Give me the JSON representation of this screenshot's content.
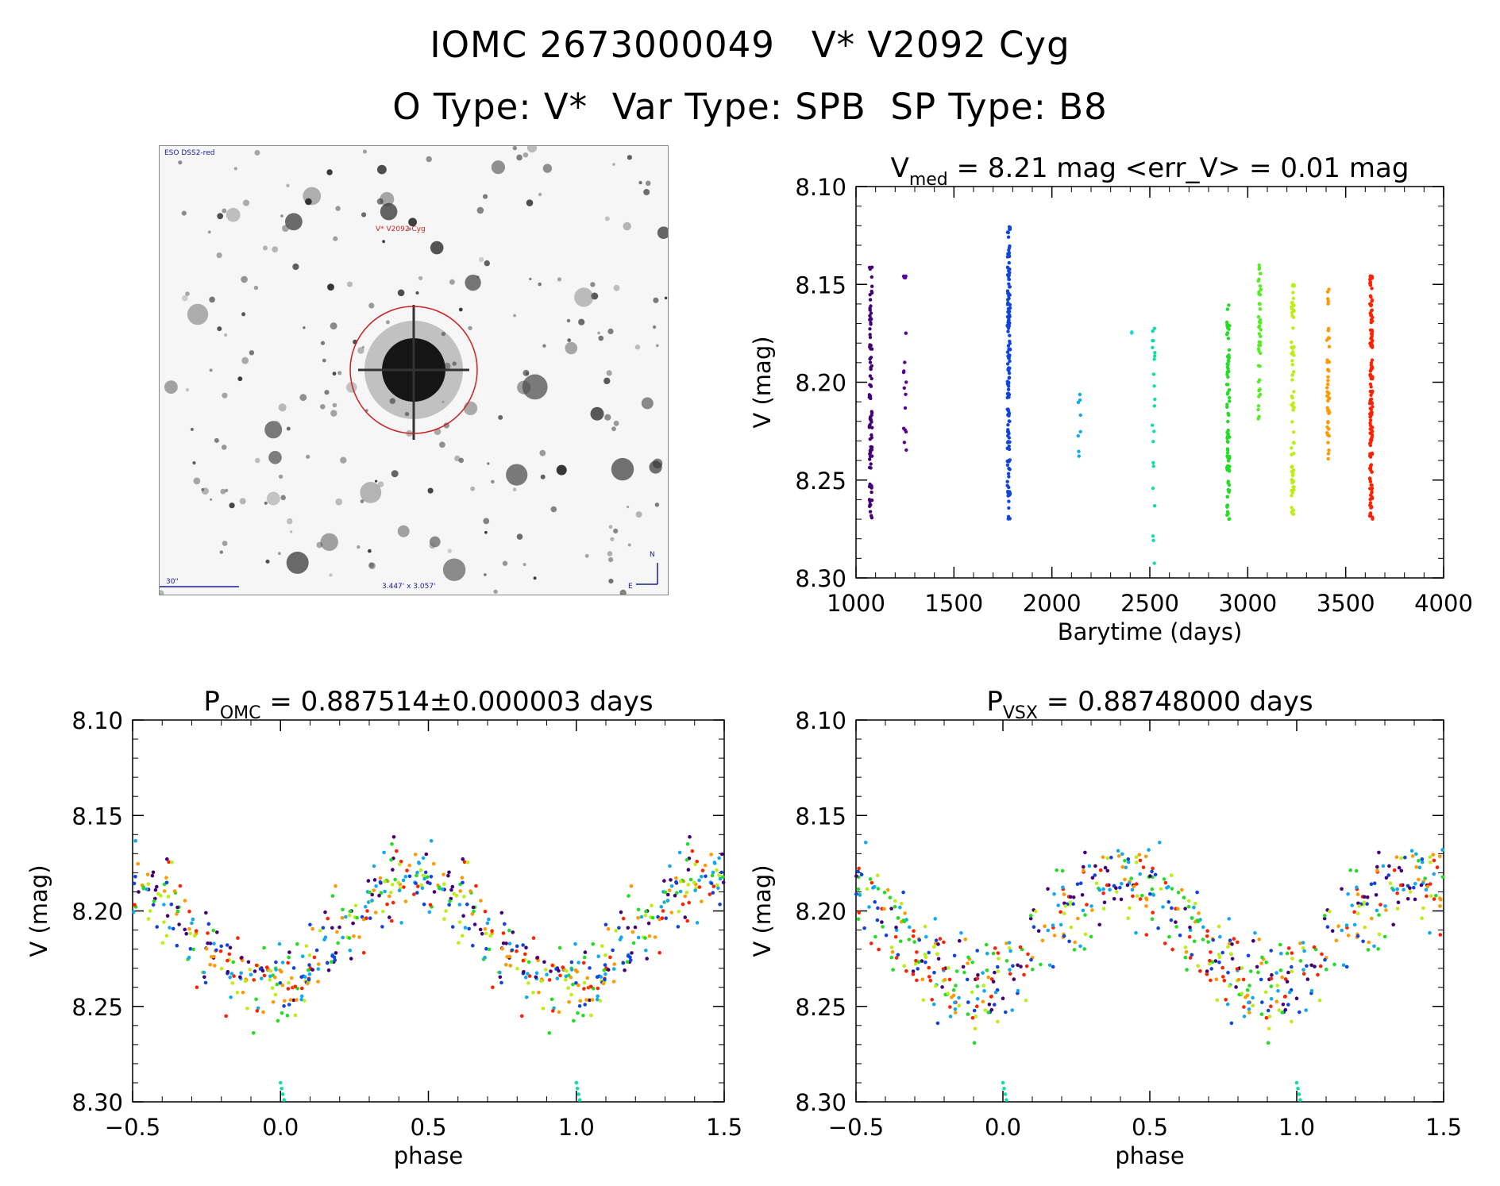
{
  "header": {
    "title": "IOMC 2673000049   V* V2092 Cyg",
    "subtitle": "O Type: V*  Var Type: SPB  SP Type: B8"
  },
  "finder_chart": {
    "survey_label": "ESO DSS2-red",
    "target_label": "V* V2092 Cyg",
    "scale_label": "30\"",
    "fov_label": "3.447' x 3.057'",
    "compass_n": "N",
    "compass_e": "E",
    "colors": {
      "target_circle": "#cc2222",
      "labels": "#1a1a99"
    }
  },
  "chart_data": [
    {
      "type": "scatter",
      "id": "lightcurve",
      "title_main": "V",
      "title_sub": "med",
      "title_rest": " = 8.21 mag <err_V> = 0.01 mag",
      "xlabel": "Barytime (days)",
      "ylabel": "V (mag)",
      "xlim": [
        1000,
        4000
      ],
      "ylim": [
        8.1,
        8.3
      ],
      "y_inverted": true,
      "x_ticks": [
        1000,
        1500,
        2000,
        2500,
        3000,
        3500,
        4000
      ],
      "y_ticks": [
        "8.10",
        "8.15",
        "8.20",
        "8.25",
        "8.30"
      ],
      "grid": false,
      "groups": [
        {
          "x": 1075,
          "ymin": 8.14,
          "ymax": 8.27,
          "n": 90,
          "color": "#440077"
        },
        {
          "x": 1250,
          "ymin": 8.14,
          "ymax": 8.26,
          "n": 18,
          "color": "#5a0099"
        },
        {
          "x": 1780,
          "ymin": 8.12,
          "ymax": 8.27,
          "n": 150,
          "color": "#1144dd"
        },
        {
          "x": 2140,
          "ymin": 8.2,
          "ymax": 8.245,
          "n": 8,
          "color": "#11aaee"
        },
        {
          "x": 2410,
          "ymin": 8.17,
          "ymax": 8.175,
          "n": 2,
          "color": "#11ddcc"
        },
        {
          "x": 2520,
          "ymin": 8.17,
          "ymax": 8.3,
          "n": 22,
          "color": "#11ddaa"
        },
        {
          "x": 2900,
          "ymin": 8.16,
          "ymax": 8.27,
          "n": 80,
          "color": "#22dd22"
        },
        {
          "x": 3060,
          "ymin": 8.14,
          "ymax": 8.22,
          "n": 45,
          "color": "#55ee22"
        },
        {
          "x": 3230,
          "ymin": 8.15,
          "ymax": 8.27,
          "n": 70,
          "color": "#bbee11"
        },
        {
          "x": 3410,
          "ymin": 8.15,
          "ymax": 8.24,
          "n": 45,
          "color": "#ff9900"
        },
        {
          "x": 3630,
          "ymin": 8.145,
          "ymax": 8.27,
          "n": 150,
          "color": "#ff2200"
        }
      ]
    },
    {
      "type": "scatter",
      "id": "phase-omc",
      "title_main": "P",
      "title_sub": "OMC",
      "title_rest": " = 0.887514±0.000003 days",
      "xlabel": "phase",
      "ylabel": "V (mag)",
      "xlim": [
        -0.5,
        1.5
      ],
      "ylim": [
        8.1,
        8.3
      ],
      "y_inverted": true,
      "x_ticks": [
        "−0.5",
        "0.0",
        "0.5",
        "1.0",
        "1.5"
      ],
      "x_tick_values": [
        -0.5,
        0.0,
        0.5,
        1.0,
        1.5
      ],
      "y_ticks": [
        "8.10",
        "8.15",
        "8.20",
        "8.25",
        "8.30"
      ],
      "model": {
        "mean": 8.212,
        "amp": 0.028,
        "phase0": 0.45,
        "scatter": 0.018,
        "n": 330,
        "seed": 7
      },
      "colors": [
        "#440077",
        "#1144dd",
        "#11aaee",
        "#22dd22",
        "#bbee11",
        "#ff9900",
        "#ff2200"
      ]
    },
    {
      "type": "scatter",
      "id": "phase-vsx",
      "title_main": "P",
      "title_sub": "VSX",
      "title_rest": " = 0.88748000 days",
      "xlabel": "phase",
      "ylabel": "V (mag)",
      "xlim": [
        -0.5,
        1.5
      ],
      "ylim": [
        8.1,
        8.3
      ],
      "y_inverted": true,
      "x_ticks": [
        "−0.5",
        "0.0",
        "0.5",
        "1.0",
        "1.5"
      ],
      "x_tick_values": [
        -0.5,
        0.0,
        0.5,
        1.0,
        1.5
      ],
      "y_ticks": [
        "8.10",
        "8.15",
        "8.20",
        "8.25",
        "8.30"
      ],
      "model": {
        "mean": 8.212,
        "amp": 0.028,
        "phase0": 0.4,
        "scatter": 0.02,
        "n": 330,
        "seed": 13
      },
      "colors": [
        "#440077",
        "#1144dd",
        "#11aaee",
        "#22dd22",
        "#bbee11",
        "#ff9900",
        "#ff2200"
      ]
    }
  ]
}
